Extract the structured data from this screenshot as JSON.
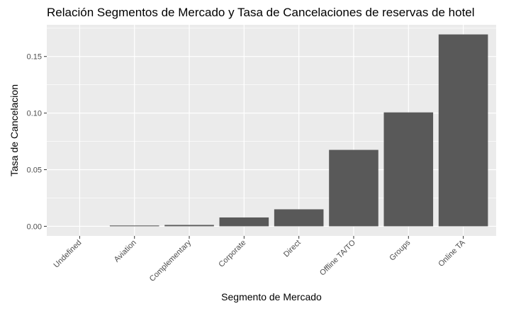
{
  "chart_data": {
    "type": "bar",
    "title": "Relación Segmentos de Mercado y Tasa de Cancelaciones de reservas de hotel",
    "xlabel": "Segmento de Mercado",
    "ylabel": "Tasa de Cancelacion",
    "categories": [
      "Undefined",
      "Aviation",
      "Complementary",
      "Corporate",
      "Direct",
      "Offline TA/TO",
      "Groups",
      "Online TA"
    ],
    "values": [
      0.0,
      0.0007,
      0.0012,
      0.0078,
      0.015,
      0.0675,
      0.1006,
      0.1695
    ],
    "ylim": [
      -0.0085,
      0.178
    ],
    "yticks": [
      0.0,
      0.05,
      0.1,
      0.15
    ],
    "ytick_labels": [
      "0.00",
      "0.05",
      "0.10",
      "0.15"
    ],
    "grid": true,
    "legend": "none",
    "colors": {
      "panel": "#ebebeb",
      "bar": "#595959",
      "grid_major": "#ffffff",
      "text": "#000000",
      "tick_text": "#4d4d4d"
    }
  }
}
